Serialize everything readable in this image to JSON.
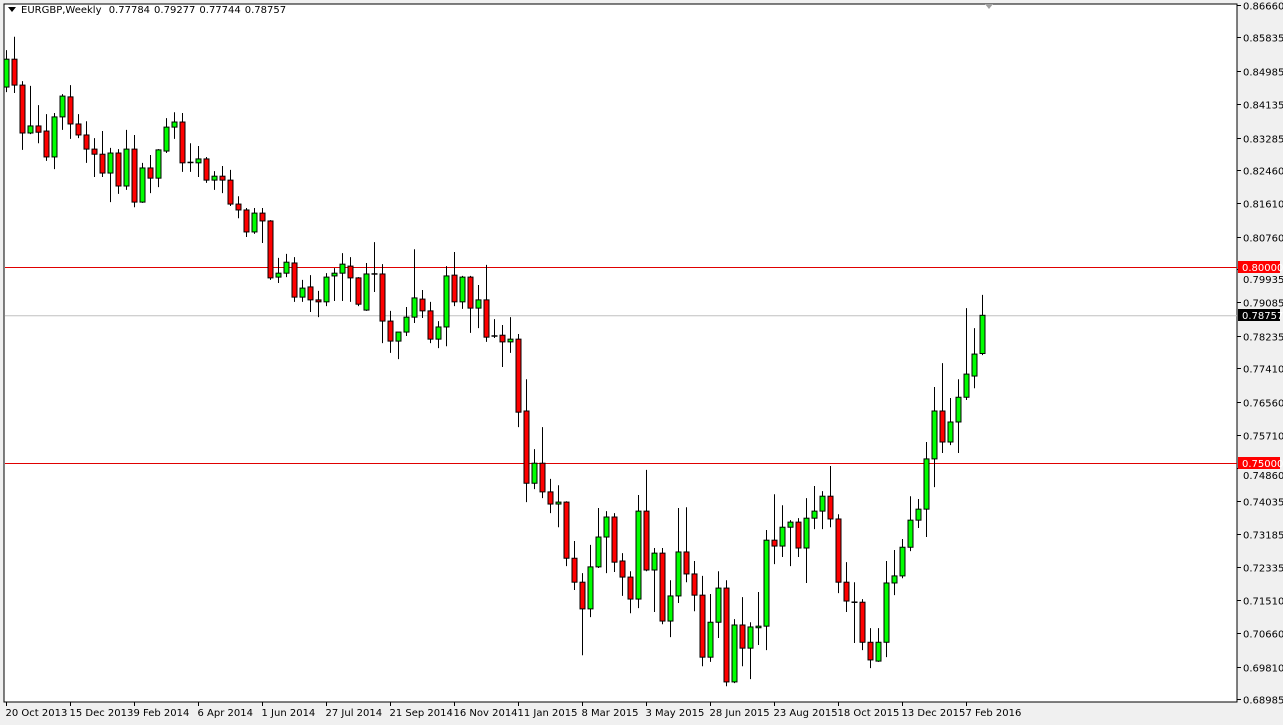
{
  "header": {
    "symbol": "EURGBP,Weekly",
    "open": "0.77784",
    "high": "0.79277",
    "low": "0.77744",
    "close": "0.78757"
  },
  "colors": {
    "bull": "#00ff00",
    "bear": "#ff0000",
    "outline": "#000000",
    "level_line": "#e00000",
    "bid_line": "#c0c0c0",
    "background": "#ffffff"
  },
  "chart_data": {
    "type": "candlestick",
    "title": "EURGBP,Weekly",
    "ylim": [
      0.68985,
      0.8666
    ],
    "grid": false,
    "y_ticks": [
      "0.86660",
      "0.85835",
      "0.84985",
      "0.84135",
      "0.83285",
      "0.82460",
      "0.81610",
      "0.80760",
      "0.79935",
      "0.79085",
      "0.78235",
      "0.77410",
      "0.76560",
      "0.75710",
      "0.74860",
      "0.74035",
      "0.73185",
      "0.72335",
      "0.71510",
      "0.70660",
      "0.69810",
      "0.68985"
    ],
    "x_ticks": [
      "20 Oct 2013",
      "15 Dec 2013",
      "9 Feb 2014",
      "6 Apr 2014",
      "1 Jun 2014",
      "27 Jul 2014",
      "21 Sep 2014",
      "16 Nov 2014",
      "11 Jan 2015",
      "8 Mar 2015",
      "3 May 2015",
      "28 Jun 2015",
      "23 Aug 2015",
      "18 Oct 2015",
      "13 Dec 2015",
      "7 Feb 2016"
    ],
    "x_tick_every_n_bars": 8,
    "horizontal_levels": [
      {
        "price": 0.8,
        "label": "0.80000"
      },
      {
        "price": 0.75,
        "label": "0.75000"
      }
    ],
    "bid": {
      "price": 0.78757,
      "label": "0.78757"
    },
    "ohlc_columns": [
      "open",
      "high",
      "low",
      "close"
    ],
    "ohlc": [
      [
        0.8457,
        0.8551,
        0.8444,
        0.8528
      ],
      [
        0.8528,
        0.8585,
        0.8442,
        0.8462
      ],
      [
        0.8462,
        0.8472,
        0.8297,
        0.834
      ],
      [
        0.834,
        0.846,
        0.8337,
        0.8358
      ],
      [
        0.8358,
        0.8411,
        0.8314,
        0.8342
      ],
      [
        0.8345,
        0.8388,
        0.8269,
        0.8279
      ],
      [
        0.8279,
        0.8391,
        0.8248,
        0.8381
      ],
      [
        0.8381,
        0.8439,
        0.8348,
        0.8434
      ],
      [
        0.8432,
        0.8462,
        0.8325,
        0.8363
      ],
      [
        0.8363,
        0.8388,
        0.8327,
        0.8335
      ],
      [
        0.8335,
        0.837,
        0.8264,
        0.8299
      ],
      [
        0.8299,
        0.8327,
        0.8228,
        0.8286
      ],
      [
        0.8286,
        0.8345,
        0.8228,
        0.8238
      ],
      [
        0.8238,
        0.8302,
        0.8164,
        0.8289
      ],
      [
        0.8289,
        0.8299,
        0.8185,
        0.8205
      ],
      [
        0.8205,
        0.8348,
        0.8195,
        0.8299
      ],
      [
        0.8299,
        0.8335,
        0.8151,
        0.8164
      ],
      [
        0.8164,
        0.8264,
        0.8162,
        0.8251
      ],
      [
        0.8251,
        0.8284,
        0.8187,
        0.8225
      ],
      [
        0.8225,
        0.8299,
        0.8202,
        0.8297
      ],
      [
        0.8294,
        0.8378,
        0.8289,
        0.8355
      ],
      [
        0.8355,
        0.8393,
        0.8325,
        0.8368
      ],
      [
        0.8368,
        0.8391,
        0.8241,
        0.8264
      ],
      [
        0.8264,
        0.8314,
        0.8241,
        0.8265
      ],
      [
        0.8264,
        0.8307,
        0.8228,
        0.8274
      ],
      [
        0.8274,
        0.8279,
        0.8213,
        0.822
      ],
      [
        0.822,
        0.8243,
        0.8195,
        0.823
      ],
      [
        0.823,
        0.8256,
        0.8187,
        0.822
      ],
      [
        0.822,
        0.8246,
        0.8154,
        0.8159
      ],
      [
        0.8159,
        0.8179,
        0.8123,
        0.8144
      ],
      [
        0.8144,
        0.8149,
        0.8075,
        0.8088
      ],
      [
        0.8088,
        0.8149,
        0.8083,
        0.8136
      ],
      [
        0.8136,
        0.8149,
        0.806,
        0.8116
      ],
      [
        0.8116,
        0.8118,
        0.7966,
        0.7971
      ],
      [
        0.7973,
        0.8022,
        0.7958,
        0.7983
      ],
      [
        0.7983,
        0.8032,
        0.7973,
        0.8011
      ],
      [
        0.8009,
        0.8024,
        0.791,
        0.7922
      ],
      [
        0.7922,
        0.7966,
        0.791,
        0.7945
      ],
      [
        0.7948,
        0.7978,
        0.7884,
        0.7915
      ],
      [
        0.7915,
        0.7938,
        0.7871,
        0.791
      ],
      [
        0.791,
        0.7983,
        0.7899,
        0.7973
      ],
      [
        0.7976,
        0.7996,
        0.7912,
        0.7983
      ],
      [
        0.7983,
        0.8034,
        0.7912,
        0.8006
      ],
      [
        0.8001,
        0.8024,
        0.791,
        0.7971
      ],
      [
        0.7971,
        0.7973,
        0.7899,
        0.7904
      ],
      [
        0.7889,
        0.8009,
        0.7887,
        0.7981
      ],
      [
        0.7981,
        0.8062,
        0.7935,
        0.7978
      ],
      [
        0.7981,
        0.8006,
        0.7805,
        0.7861
      ],
      [
        0.7861,
        0.7887,
        0.778,
        0.781
      ],
      [
        0.781,
        0.7833,
        0.7764,
        0.7833
      ],
      [
        0.7833,
        0.7897,
        0.7823,
        0.7871
      ],
      [
        0.7871,
        0.8044,
        0.7856,
        0.792
      ],
      [
        0.7917,
        0.794,
        0.7869,
        0.7887
      ],
      [
        0.7887,
        0.791,
        0.7805,
        0.7815
      ],
      [
        0.7815,
        0.7861,
        0.7792,
        0.7846
      ],
      [
        0.7846,
        0.8001,
        0.7797,
        0.7976
      ],
      [
        0.7978,
        0.8037,
        0.7899,
        0.791
      ],
      [
        0.791,
        0.7976,
        0.7892,
        0.7973
      ],
      [
        0.7973,
        0.7976,
        0.7831,
        0.7894
      ],
      [
        0.7894,
        0.7953,
        0.7843,
        0.7915
      ],
      [
        0.7915,
        0.8004,
        0.7808,
        0.782
      ],
      [
        0.7823,
        0.7866,
        0.7818,
        0.782
      ],
      [
        0.7825,
        0.7851,
        0.7744,
        0.7808
      ],
      [
        0.7808,
        0.7871,
        0.778,
        0.7815
      ],
      [
        0.7815,
        0.7828,
        0.7591,
        0.7629
      ],
      [
        0.7632,
        0.7713,
        0.74,
        0.7448
      ],
      [
        0.7448,
        0.7535,
        0.7433,
        0.7499
      ],
      [
        0.7499,
        0.7591,
        0.741,
        0.7426
      ],
      [
        0.7426,
        0.7459,
        0.7372,
        0.7395
      ],
      [
        0.7395,
        0.7443,
        0.7336,
        0.74
      ],
      [
        0.74,
        0.7402,
        0.7237,
        0.7257
      ],
      [
        0.7257,
        0.7301,
        0.7176,
        0.7196
      ],
      [
        0.7196,
        0.7219,
        0.701,
        0.7128
      ],
      [
        0.7128,
        0.7291,
        0.7107,
        0.7235
      ],
      [
        0.7235,
        0.7385,
        0.7232,
        0.7311
      ],
      [
        0.7311,
        0.7377,
        0.7219,
        0.7362
      ],
      [
        0.7362,
        0.7372,
        0.7222,
        0.7247
      ],
      [
        0.725,
        0.727,
        0.7161,
        0.7209
      ],
      [
        0.7209,
        0.7224,
        0.7117,
        0.7153
      ],
      [
        0.7153,
        0.7418,
        0.713,
        0.7377
      ],
      [
        0.7377,
        0.7482,
        0.7224,
        0.7227
      ],
      [
        0.7227,
        0.7283,
        0.712,
        0.727
      ],
      [
        0.727,
        0.7283,
        0.7089,
        0.7097
      ],
      [
        0.7097,
        0.7201,
        0.7056,
        0.7161
      ],
      [
        0.7161,
        0.7385,
        0.7143,
        0.7273
      ],
      [
        0.7273,
        0.7387,
        0.7196,
        0.7217
      ],
      [
        0.7217,
        0.725,
        0.7122,
        0.7163
      ],
      [
        0.7163,
        0.7212,
        0.6982,
        0.7005
      ],
      [
        0.7005,
        0.7166,
        0.6993,
        0.7094
      ],
      [
        0.7094,
        0.7224,
        0.7054,
        0.7181
      ],
      [
        0.7181,
        0.7201,
        0.6931,
        0.6942
      ],
      [
        0.6942,
        0.7102,
        0.6939,
        0.7087
      ],
      [
        0.7087,
        0.7158,
        0.6982,
        0.7028
      ],
      [
        0.7028,
        0.7094,
        0.6949,
        0.7082
      ],
      [
        0.708,
        0.7171,
        0.7036,
        0.7084
      ],
      [
        0.7084,
        0.7329,
        0.7023,
        0.7303
      ],
      [
        0.7303,
        0.742,
        0.7242,
        0.7288
      ],
      [
        0.7288,
        0.7392,
        0.726,
        0.7336
      ],
      [
        0.7336,
        0.7354,
        0.7237,
        0.7349
      ],
      [
        0.7349,
        0.7359,
        0.726,
        0.7283
      ],
      [
        0.7283,
        0.741,
        0.7194,
        0.7359
      ],
      [
        0.7359,
        0.7441,
        0.7331,
        0.7377
      ],
      [
        0.7377,
        0.7428,
        0.7331,
        0.7415
      ],
      [
        0.7415,
        0.7492,
        0.7336,
        0.7357
      ],
      [
        0.7357,
        0.7369,
        0.7168,
        0.7196
      ],
      [
        0.7196,
        0.7247,
        0.712,
        0.7148
      ],
      [
        0.7145,
        0.7196,
        0.7041,
        0.7143
      ],
      [
        0.7145,
        0.7153,
        0.7023,
        0.7043
      ],
      [
        0.7043,
        0.7079,
        0.6977,
        0.6998
      ],
      [
        0.6995,
        0.7079,
        0.6993,
        0.7043
      ],
      [
        0.7043,
        0.725,
        0.7005,
        0.7194
      ],
      [
        0.7194,
        0.7278,
        0.7163,
        0.7212
      ],
      [
        0.7212,
        0.7306,
        0.7206,
        0.7285
      ],
      [
        0.7285,
        0.7415,
        0.7275,
        0.7354
      ],
      [
        0.7354,
        0.7408,
        0.7334,
        0.7382
      ],
      [
        0.7382,
        0.7553,
        0.7311,
        0.751
      ],
      [
        0.751,
        0.7693,
        0.7438,
        0.7632
      ],
      [
        0.7632,
        0.7754,
        0.7525,
        0.7553
      ],
      [
        0.7553,
        0.7665,
        0.7545,
        0.7604
      ],
      [
        0.7604,
        0.7713,
        0.7525,
        0.7667
      ],
      [
        0.7667,
        0.7894,
        0.766,
        0.7726
      ],
      [
        0.7721,
        0.7843,
        0.769,
        0.7777
      ],
      [
        0.77784,
        0.79277,
        0.77744,
        0.78757
      ]
    ]
  }
}
